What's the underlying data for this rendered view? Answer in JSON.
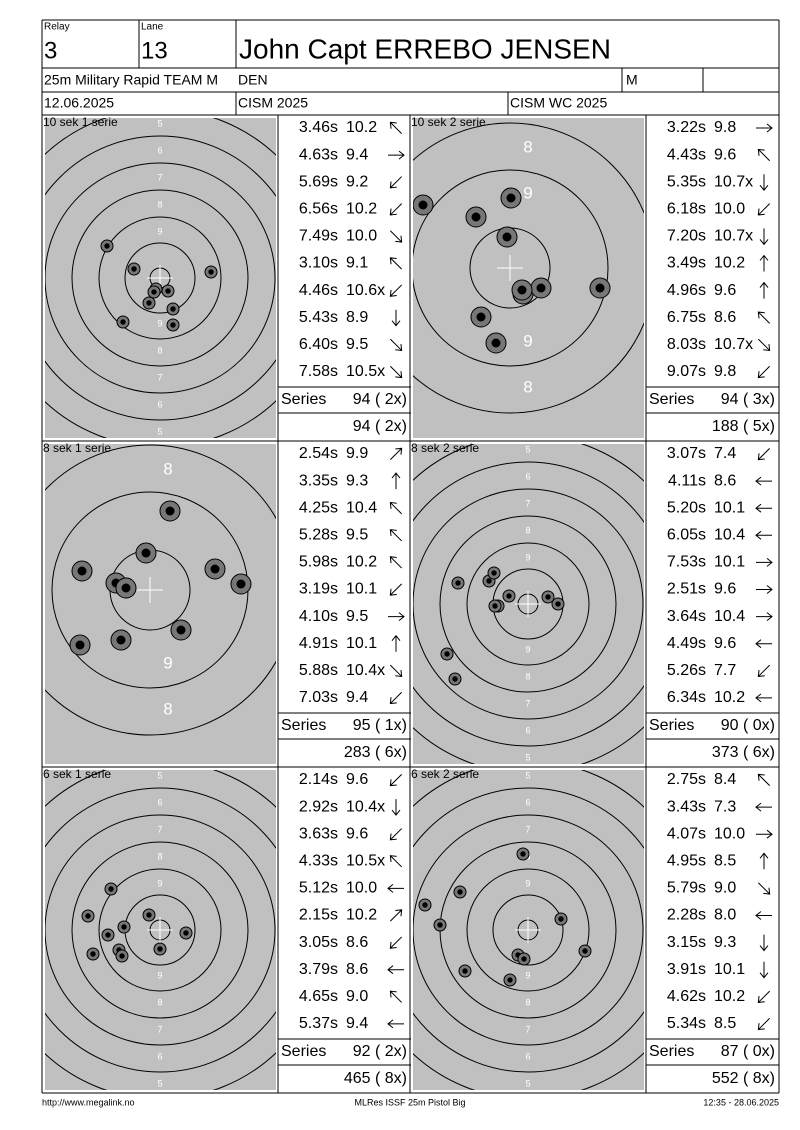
{
  "header": {
    "relay_label": "Relay",
    "relay": "3",
    "lane_label": "Lane",
    "lane": "13",
    "name": "John Capt ERREBO JENSEN",
    "event": "25m Military Rapid TEAM M",
    "nation": "DEN",
    "gender": "M",
    "date": "12.06.2025",
    "competition": "CISM 2025",
    "match": "CISM WC 2025"
  },
  "panels": [
    {
      "title": "10 sek 1 serie",
      "ring_labels": [
        "5",
        "6",
        "7",
        "8",
        "9"
      ],
      "shots": [
        {
          "time": "3.46s",
          "score": "10.2"
        },
        {
          "time": "4.63s",
          "score": "9.4"
        },
        {
          "time": "5.69s",
          "score": "9.2"
        },
        {
          "time": "6.56s",
          "score": "10.2"
        },
        {
          "time": "7.49s",
          "score": "10.0"
        },
        {
          "time": "3.10s",
          "score": "9.1"
        },
        {
          "time": "4.46s",
          "score": "10.6x"
        },
        {
          "time": "5.43s",
          "score": "8.9"
        },
        {
          "time": "6.40s",
          "score": "9.5"
        },
        {
          "time": "7.58s",
          "score": "10.5x"
        }
      ],
      "series_label": "Series",
      "series": "94 ( 2x)",
      "total": "94 ( 2x)"
    },
    {
      "title": "10 sek 2 serie",
      "ring_labels": [
        "8",
        "9"
      ],
      "shots": [
        {
          "time": "3.22s",
          "score": "9.8"
        },
        {
          "time": "4.43s",
          "score": "9.6"
        },
        {
          "time": "5.35s",
          "score": "10.7x"
        },
        {
          "time": "6.18s",
          "score": "10.0"
        },
        {
          "time": "7.20s",
          "score": "10.7x"
        },
        {
          "time": "3.49s",
          "score": "10.2"
        },
        {
          "time": "4.96s",
          "score": "9.6"
        },
        {
          "time": "6.75s",
          "score": "8.6"
        },
        {
          "time": "8.03s",
          "score": "10.7x"
        },
        {
          "time": "9.07s",
          "score": "9.8"
        }
      ],
      "series_label": "Series",
      "series": "94 ( 3x)",
      "total": "188 ( 5x)"
    },
    {
      "title": "8 sek 1 serie",
      "ring_labels": [
        "8",
        "9"
      ],
      "shots": [
        {
          "time": "2.54s",
          "score": "9.9"
        },
        {
          "time": "3.35s",
          "score": "9.3"
        },
        {
          "time": "4.25s",
          "score": "10.4"
        },
        {
          "time": "5.28s",
          "score": "9.5"
        },
        {
          "time": "5.98s",
          "score": "10.2"
        },
        {
          "time": "3.19s",
          "score": "10.1"
        },
        {
          "time": "4.10s",
          "score": "9.5"
        },
        {
          "time": "4.91s",
          "score": "10.1"
        },
        {
          "time": "5.88s",
          "score": "10.4x"
        },
        {
          "time": "7.03s",
          "score": "9.4"
        }
      ],
      "series_label": "Series",
      "series": "95 ( 1x)",
      "total": "283 ( 6x)"
    },
    {
      "title": "8 sek 2 serie",
      "ring_labels": [
        "5",
        "6",
        "7",
        "8",
        "9"
      ],
      "shots": [
        {
          "time": "3.07s",
          "score": "7.4"
        },
        {
          "time": "4.11s",
          "score": "8.6"
        },
        {
          "time": "5.20s",
          "score": "10.1"
        },
        {
          "time": "6.05s",
          "score": "10.4"
        },
        {
          "time": "7.53s",
          "score": "10.1"
        },
        {
          "time": "2.51s",
          "score": "9.6"
        },
        {
          "time": "3.64s",
          "score": "10.4"
        },
        {
          "time": "4.49s",
          "score": "9.6"
        },
        {
          "time": "5.26s",
          "score": "7.7"
        },
        {
          "time": "6.34s",
          "score": "10.2"
        }
      ],
      "series_label": "Series",
      "series": "90 ( 0x)",
      "total": "373 ( 6x)"
    },
    {
      "title": "6 sek 1 serie",
      "ring_labels": [
        "5",
        "6",
        "7",
        "8",
        "9"
      ],
      "shots": [
        {
          "time": "2.14s",
          "score": "9.6"
        },
        {
          "time": "2.92s",
          "score": "10.4x"
        },
        {
          "time": "3.63s",
          "score": "9.6"
        },
        {
          "time": "4.33s",
          "score": "10.5x"
        },
        {
          "time": "5.12s",
          "score": "10.0"
        },
        {
          "time": "2.15s",
          "score": "10.2"
        },
        {
          "time": "3.05s",
          "score": "8.6"
        },
        {
          "time": "3.79s",
          "score": "8.6"
        },
        {
          "time": "4.65s",
          "score": "9.0"
        },
        {
          "time": "5.37s",
          "score": "9.4"
        }
      ],
      "series_label": "Series",
      "series": "92 ( 2x)",
      "total": "465 ( 8x)"
    },
    {
      "title": "6 sek 2 serie",
      "ring_labels": [
        "5",
        "6",
        "7",
        "8",
        "9"
      ],
      "shots": [
        {
          "time": "2.75s",
          "score": "8.4"
        },
        {
          "time": "3.43s",
          "score": "7.3"
        },
        {
          "time": "4.07s",
          "score": "10.0"
        },
        {
          "time": "4.95s",
          "score": "8.5"
        },
        {
          "time": "5.79s",
          "score": "9.0"
        },
        {
          "time": "2.28s",
          "score": "8.0"
        },
        {
          "time": "3.15s",
          "score": "9.3"
        },
        {
          "time": "3.91s",
          "score": "10.1"
        },
        {
          "time": "4.62s",
          "score": "10.2"
        },
        {
          "time": "5.34s",
          "score": "8.5"
        }
      ],
      "series_label": "Series",
      "series": "87 ( 0x)",
      "total": "552 ( 8x)"
    }
  ],
  "footer": {
    "url": "http://www.megalink.no",
    "program": "MLRes ISSF 25m Pistol Big",
    "timestamp": "12:35 - 28.06.2025"
  }
}
